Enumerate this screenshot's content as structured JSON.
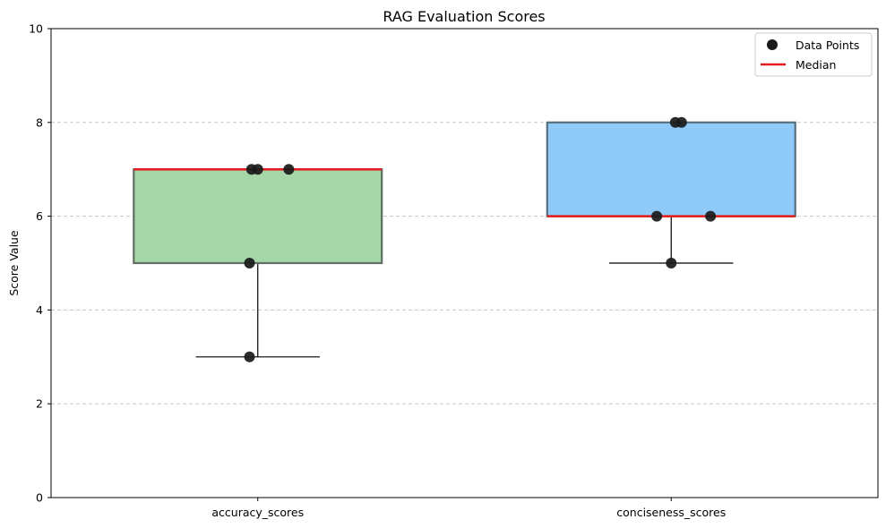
{
  "chart_data": {
    "type": "box",
    "title": "RAG Evaluation Scores",
    "xlabel": "",
    "ylabel": "Score Value",
    "ylim": [
      0,
      10
    ],
    "yticks": [
      0,
      2,
      4,
      6,
      8,
      10
    ],
    "grid": "y-dashed",
    "legend_position": "top-right",
    "categories": [
      "accuracy_scores",
      "conciseness_scores"
    ],
    "boxes": [
      {
        "q1": 5,
        "median": 7,
        "q3": 7,
        "whisker_low": 3,
        "whisker_high": 7,
        "fill": "#a5d6a7",
        "edge": "#5f6f62"
      },
      {
        "q1": 6,
        "median": 6,
        "q3": 8,
        "whisker_low": 5,
        "whisker_high": 8,
        "fill": "#90caf9",
        "edge": "#56707f"
      }
    ],
    "points": [
      [
        3,
        5,
        7,
        7,
        7
      ],
      [
        5,
        6,
        6,
        8,
        8
      ]
    ],
    "legend": [
      {
        "label": "Data Points",
        "kind": "marker",
        "color": "#1a1a1a"
      },
      {
        "label": "Median",
        "kind": "line",
        "color": "#e41a1c"
      }
    ],
    "colors": {
      "median": "#e41a1c",
      "point": "#1a1a1a",
      "whisker": "#000000",
      "grid": "#c8c8c8"
    }
  }
}
